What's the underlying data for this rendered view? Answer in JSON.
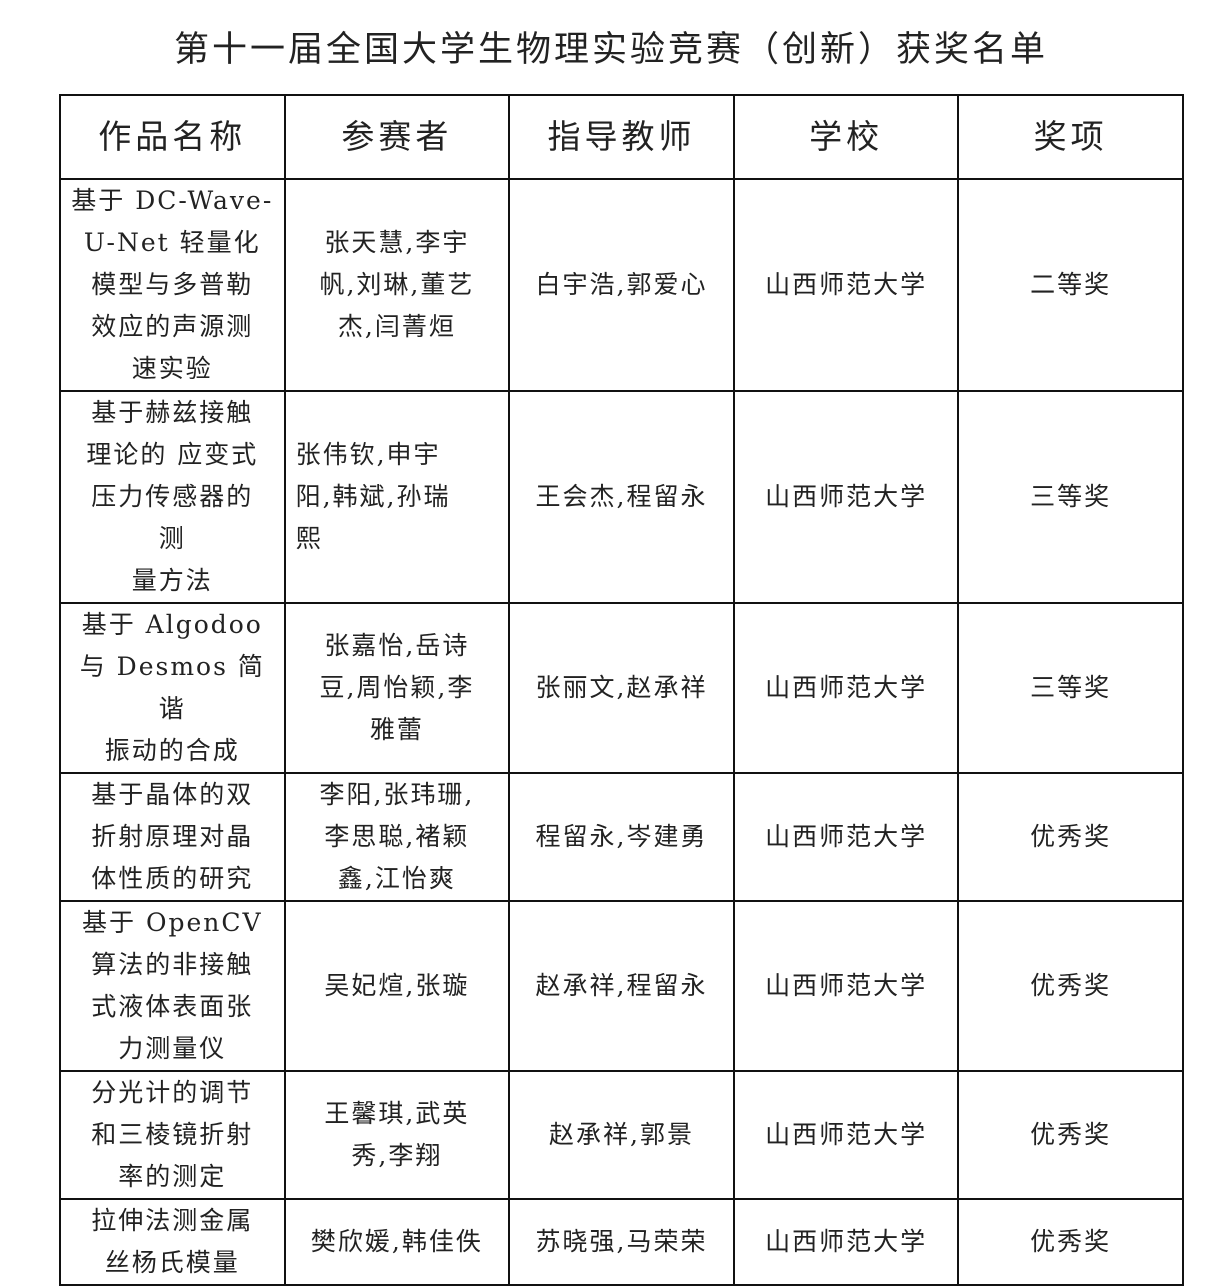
{
  "title": "第十一届全国大学生物理实验竞赛（创新）获奖名单",
  "table": {
    "headers": [
      "作品名称",
      "参赛者",
      "指导教师",
      "学校",
      "奖项"
    ],
    "rows": [
      {
        "work": "基于 DC-Wave-\nU-Net 轻量化\n模型与多普勒\n效应的声源测\n速实验",
        "participants": "张天慧,李宇\n帆,刘琳,董艺\n杰,闫菁烜",
        "advisors": "白宇浩,郭爱心",
        "school": "山西师范大学",
        "award": "二等奖"
      },
      {
        "work": "基于赫兹接触\n理论的 应变式\n压力传感器的\n测\n量方法",
        "participants": "张伟钦,申宇\n阳,韩斌,孙瑞\n熙",
        "advisors": "王会杰,程留永",
        "school": "山西师范大学",
        "award": "三等奖"
      },
      {
        "work": "基于 Algodoo\n与 Desmos 简谐\n振动的合成",
        "participants": "张嘉怡,岳诗\n豆,周怡颖,李\n雅蕾",
        "advisors": "张丽文,赵承祥",
        "school": "山西师范大学",
        "award": "三等奖"
      },
      {
        "work": "基于晶体的双\n折射原理对晶\n体性质的研究",
        "participants": "李阳,张玮珊,\n李思聪,褚颖\n鑫,江怡爽",
        "advisors": "程留永,岑建勇",
        "school": "山西师范大学",
        "award": "优秀奖"
      },
      {
        "work": "基于 OpenCV\n算法的非接触\n式液体表面张\n力测量仪",
        "participants": "吴妃煊,张璇",
        "advisors": "赵承祥,程留永",
        "school": "山西师范大学",
        "award": "优秀奖"
      },
      {
        "work": "分光计的调节\n和三棱镜折射\n率的测定",
        "participants": "王馨琪,武英\n秀,李翔",
        "advisors": "赵承祥,郭景",
        "school": "山西师范大学",
        "award": "优秀奖"
      },
      {
        "work": "拉伸法测金属\n丝杨氏模量",
        "participants": "樊欣媛,韩佳佚",
        "advisors": "苏晓强,马荣荣",
        "school": "山西师范大学",
        "award": "优秀奖"
      }
    ]
  }
}
